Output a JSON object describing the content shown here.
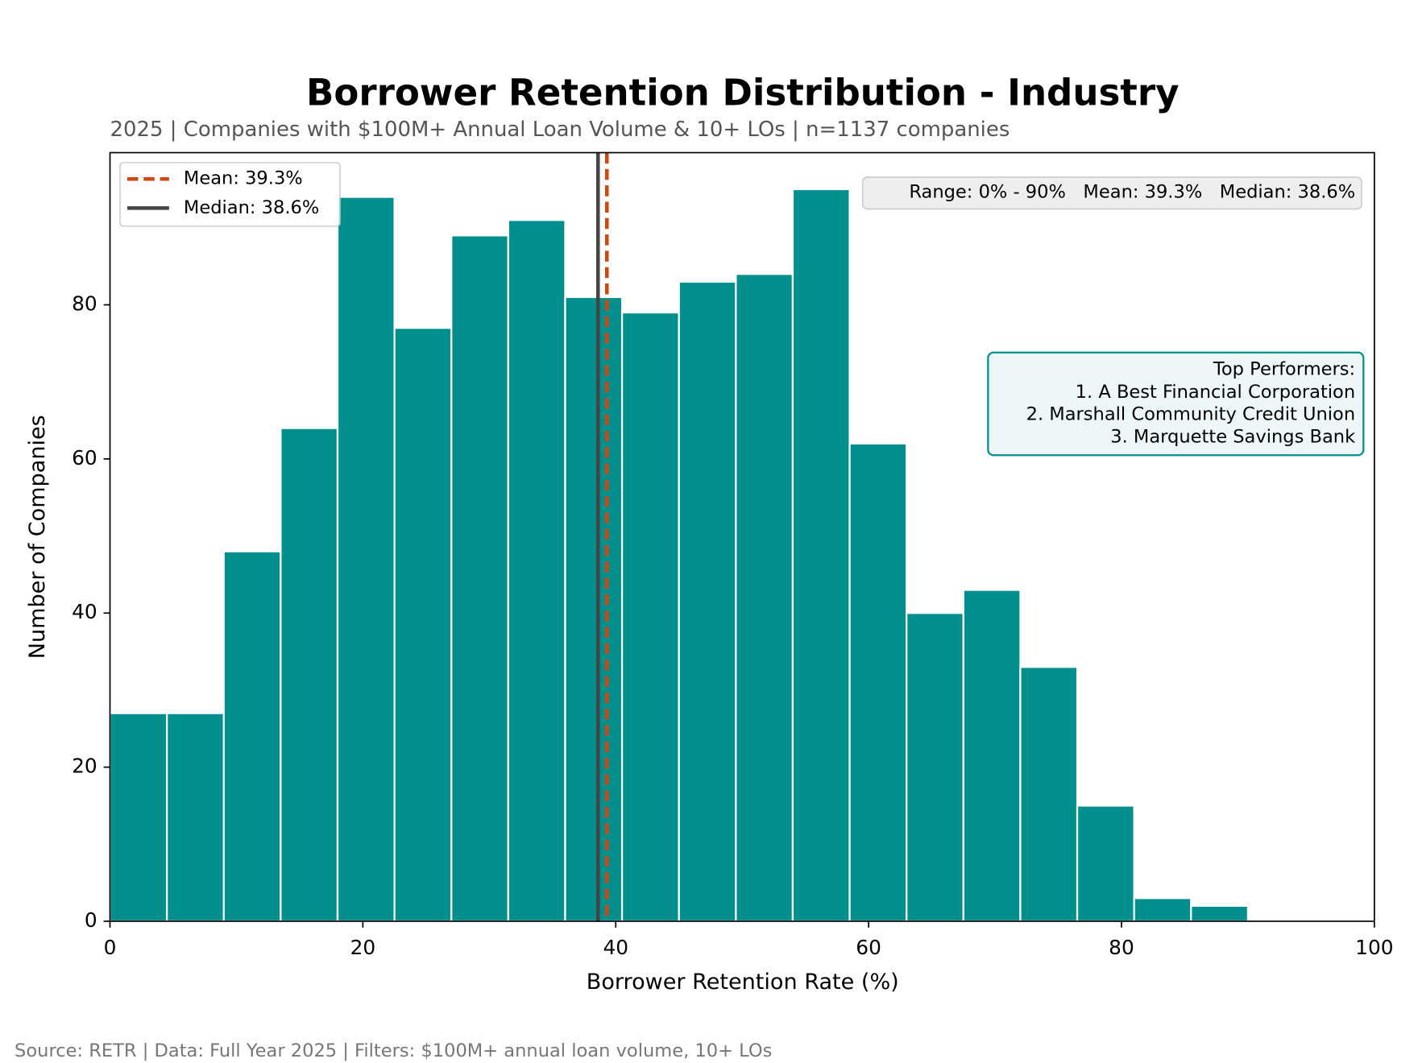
{
  "chart_data": {
    "type": "histogram",
    "title": "Borrower Retention Distribution - Industry",
    "subtitle": "2025 | Companies with $100M+ Annual Loan Volume & 10+ LOs | n=1137 companies",
    "xlabel": "Borrower Retention Rate (%)",
    "ylabel": "Number of Companies",
    "bins": [
      0,
      4.5,
      9,
      13.5,
      18,
      22.5,
      27,
      31.5,
      36,
      40.5,
      45,
      49.5,
      54,
      58.5,
      63,
      67.5,
      72,
      76.5,
      81,
      85.5,
      90
    ],
    "values": [
      27,
      27,
      48,
      64,
      94,
      77,
      89,
      91,
      81,
      79,
      83,
      84,
      95,
      62,
      40,
      43,
      33,
      15,
      3,
      2
    ],
    "color": "#008f8c",
    "xlim": [
      0,
      100
    ],
    "xticks": [
      0,
      20,
      40,
      60,
      80,
      100
    ],
    "ylim": [
      0,
      99.75
    ],
    "yticks": [
      0,
      20,
      40,
      60,
      80
    ],
    "mean": {
      "value": 39.3,
      "label": "Mean: 39.3%",
      "color": "#d2470f"
    },
    "median": {
      "value": 38.6,
      "label": "Median: 38.6%",
      "color": "#444444"
    },
    "stats_text": "Range: 0% - 90%   Mean: 39.3%   Median: 38.6%",
    "annotation": {
      "title": "Top Performers:",
      "lines": [
        "1. A Best Financial Corporation",
        "2. Marshall Community Credit Union",
        "3. Marquette Savings Bank"
      ]
    },
    "source": "Source: RETR | Data: Full Year 2025 | Filters: $100M+ annual loan volume, 10+ LOs"
  }
}
